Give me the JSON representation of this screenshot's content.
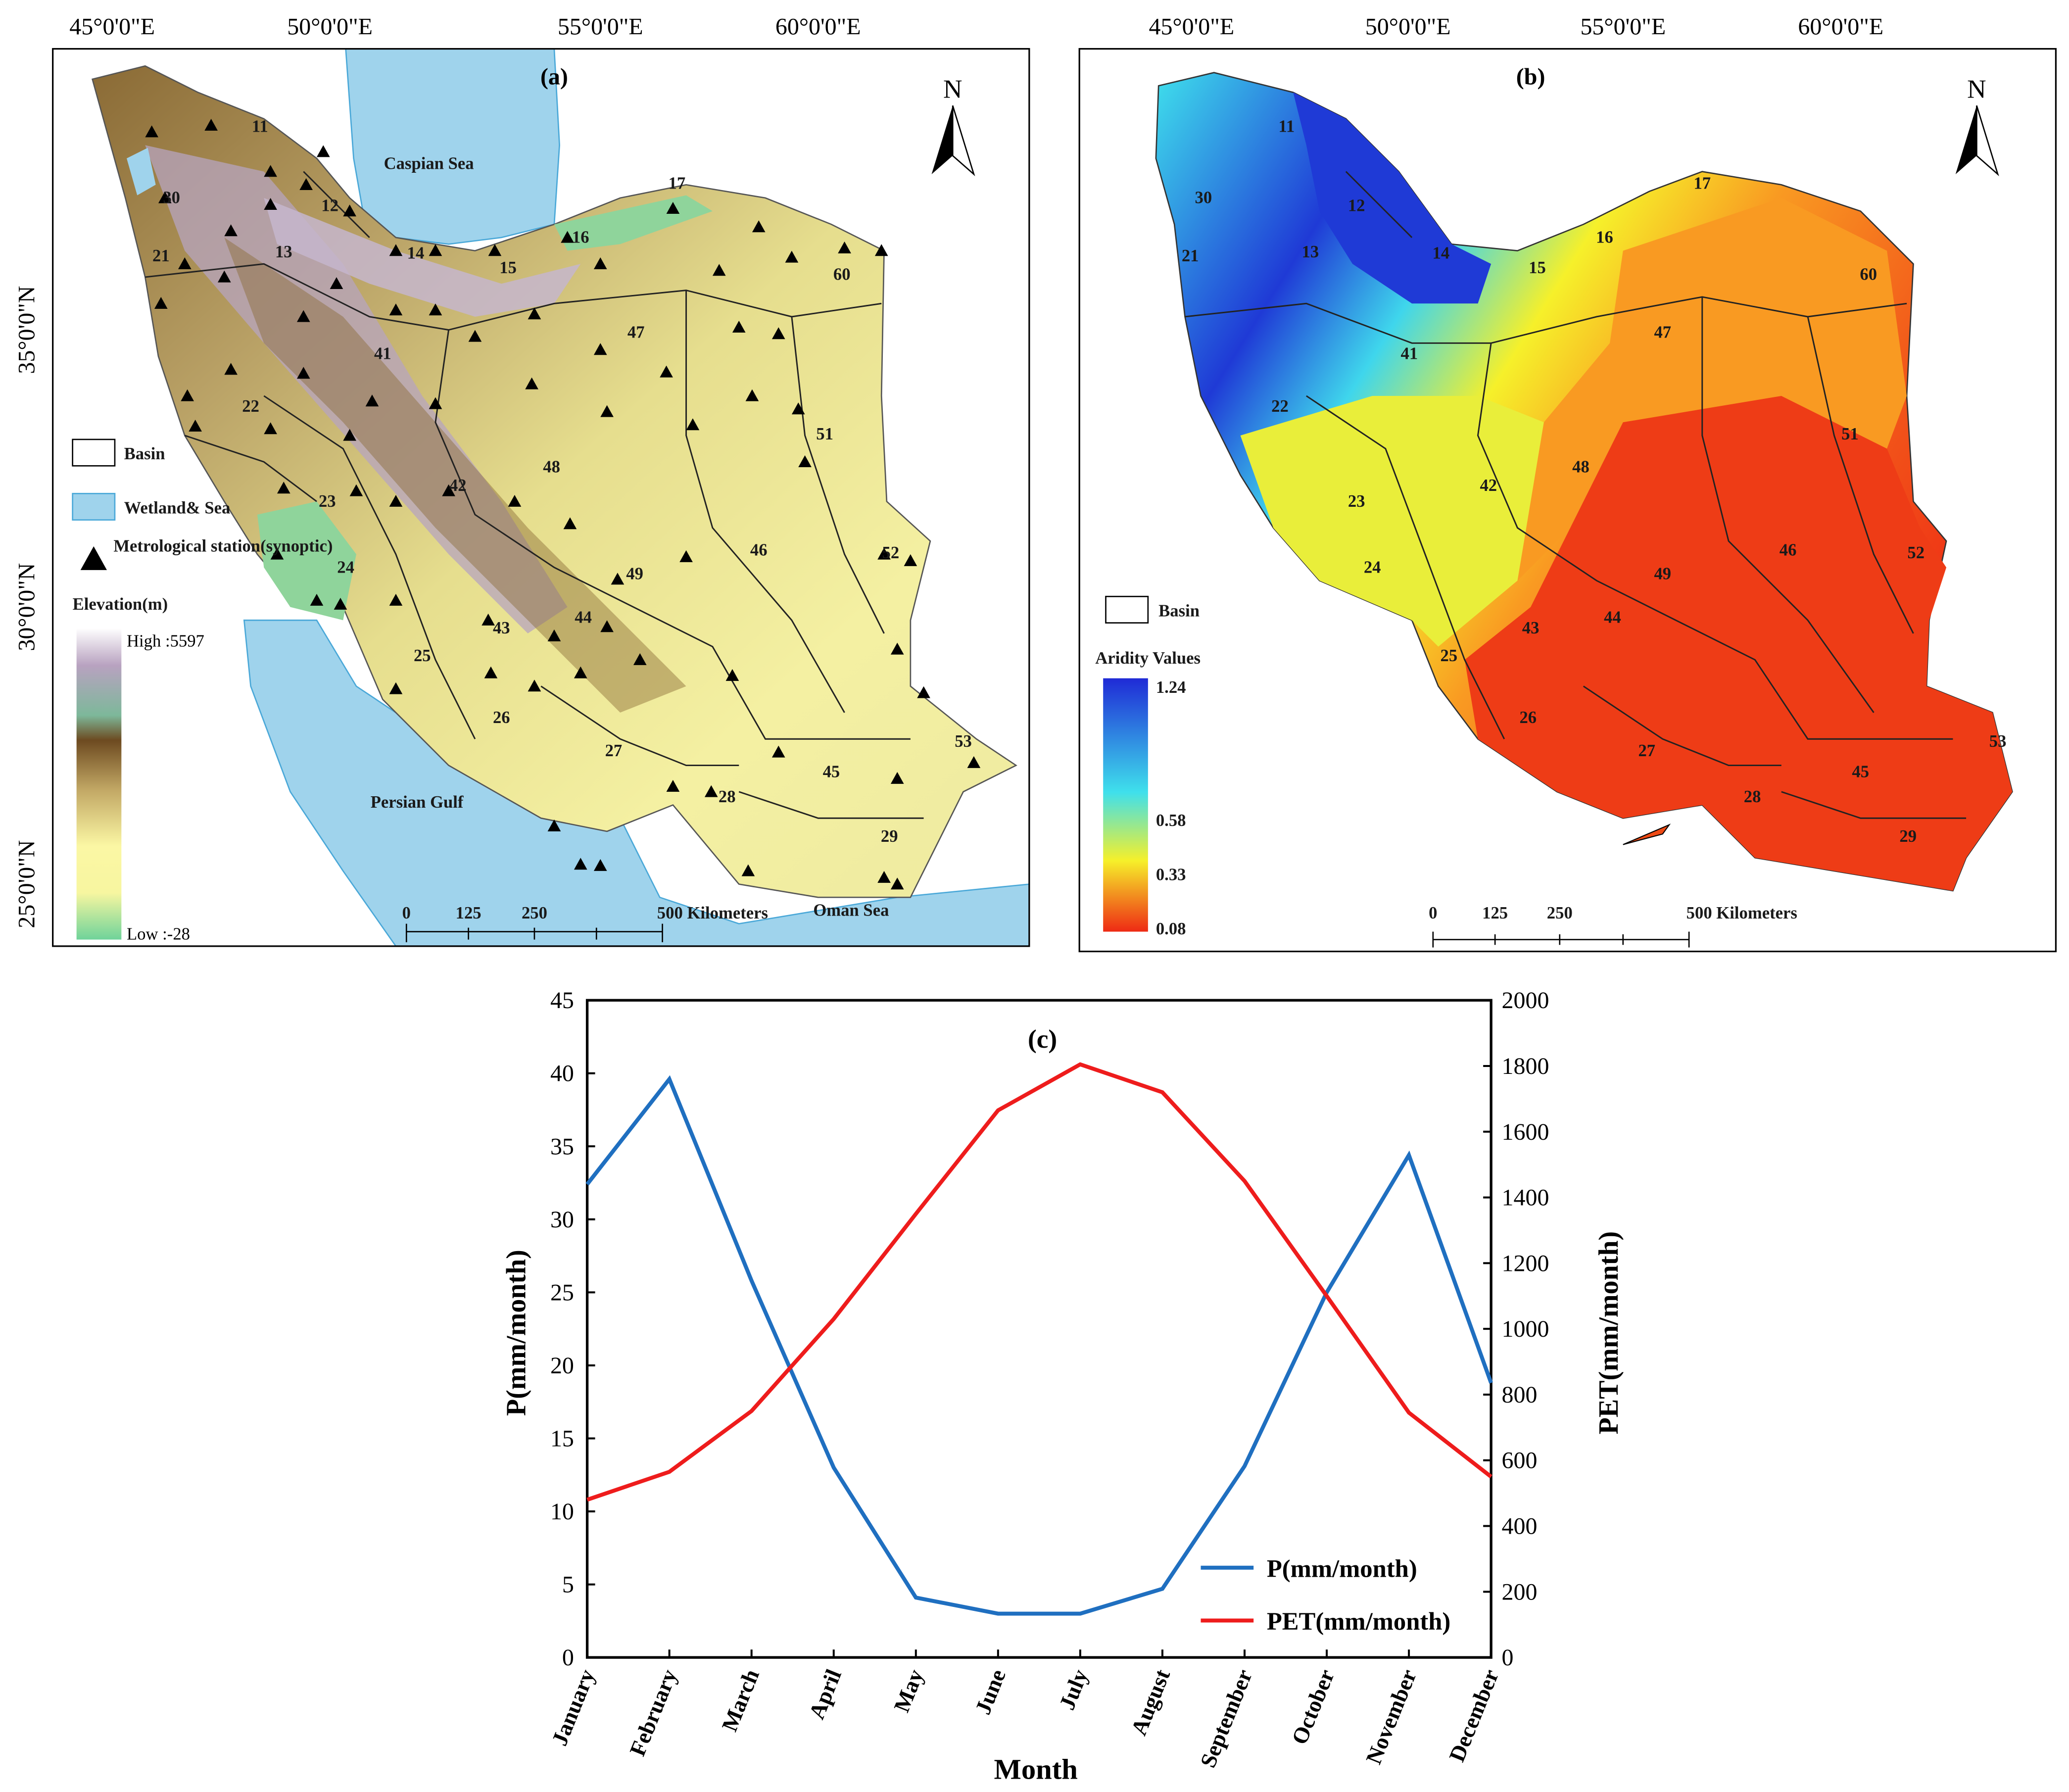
{
  "map_a": {
    "panel_label": "(a)",
    "lon_labels": [
      "45°0'0\"E",
      "50°0'0\"E",
      "55°0'0\"E",
      "60°0'0\"E"
    ],
    "lat_labels": [
      "35°0'0\"N",
      "30°0'0\"N",
      "25°0'0\"N"
    ],
    "north": "N",
    "water_labels": {
      "caspian": "Caspian Sea",
      "gulf": "Persian Gulf",
      "oman": "Oman Sea"
    },
    "legend": {
      "basin": "Basin",
      "wetland": "Wetland& Sea",
      "station": "Metrological station(synoptic)",
      "elevation_title": "Elevation(m)",
      "high": "High :5597",
      "low": "Low :-28"
    },
    "scale": {
      "ticks": [
        "0",
        "125",
        "250"
      ],
      "end": "500 Kilometers"
    },
    "basins": [
      "11",
      "12",
      "13",
      "14",
      "15",
      "16",
      "17",
      "21",
      "22",
      "23",
      "24",
      "25",
      "26",
      "27",
      "28",
      "29",
      "30",
      "41",
      "42",
      "43",
      "44",
      "45",
      "46",
      "47",
      "48",
      "49",
      "51",
      "52",
      "53",
      "60"
    ],
    "colors": {
      "sea": "#9fd3ec",
      "low": "#8fd49b",
      "mid": "#f5f3a0",
      "brown": "#8a6a35",
      "high": "#c9b9d1"
    }
  },
  "map_b": {
    "panel_label": "(b)",
    "lon_labels": [
      "45°0'0\"E",
      "50°0'0\"E",
      "55°0'0\"E",
      "60°0'0\"E"
    ],
    "north": "N",
    "legend": {
      "basin": "Basin",
      "aridity_title": "Aridity Values",
      "ticks": [
        "1.24",
        "0.58",
        "0.33",
        "0.08"
      ]
    },
    "scale": {
      "ticks": [
        "0",
        "125",
        "250"
      ],
      "end": "500 Kilometers"
    },
    "basins": [
      "11",
      "12",
      "13",
      "14",
      "15",
      "16",
      "17",
      "21",
      "22",
      "23",
      "24",
      "25",
      "26",
      "27",
      "28",
      "29",
      "30",
      "41",
      "42",
      "43",
      "44",
      "45",
      "46",
      "47",
      "48",
      "49",
      "51",
      "52",
      "53",
      "60"
    ],
    "colors": {
      "humid": "#1f3ad6",
      "cyan": "#3fe0ec",
      "yellow": "#f6f02a",
      "orange": "#f99a22",
      "red": "#ee2a14"
    }
  },
  "chart_data": {
    "type": "line",
    "title": "(c)",
    "xlabel": "Month",
    "ylabel": "P(mm/month)",
    "y2label": "PET(mm/month)",
    "categories": [
      "January",
      "February",
      "March",
      "April",
      "May",
      "June",
      "July",
      "August",
      "September",
      "October",
      "November",
      "December"
    ],
    "ylim": [
      0,
      45
    ],
    "y2lim": [
      0,
      2000
    ],
    "yticks": [
      0,
      5,
      10,
      15,
      20,
      25,
      30,
      35,
      40,
      45
    ],
    "y2ticks": [
      0,
      200,
      400,
      600,
      800,
      1000,
      1200,
      1400,
      1600,
      1800,
      2000
    ],
    "series": [
      {
        "name": "P(mm/month)",
        "axis": "left",
        "color": "#1f6fc0",
        "values": [
          32.4,
          39.6,
          25.8,
          13.0,
          4.1,
          3.0,
          3.0,
          4.7,
          13.1,
          25.0,
          34.4,
          18.8
        ]
      },
      {
        "name": "PET(mm/month)",
        "axis": "right",
        "color": "#ee1c1c",
        "values": [
          480,
          565,
          750,
          1030,
          1350,
          1665,
          1805,
          1720,
          1450,
          1100,
          745,
          550
        ]
      }
    ],
    "legend_position": "bottom-right",
    "grid": false
  }
}
